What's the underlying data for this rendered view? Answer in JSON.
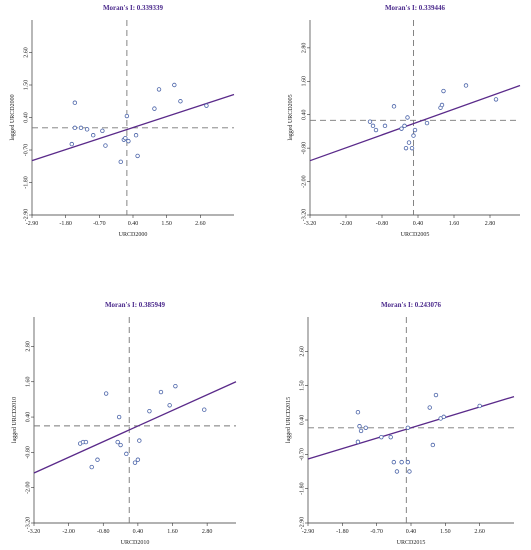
{
  "figure": {
    "chart_data": [
      {
        "type": "scatter",
        "title": "Moran's I: 0.339339",
        "xlabel": "URCD2000",
        "ylabel": "lagged URCD2000",
        "xlim": [
          -2.9,
          3.7
        ],
        "ylim": [
          -2.9,
          3.7
        ],
        "xticks": [
          "-2.90",
          "-1.80",
          "-0.70",
          "0.40",
          "1.50",
          "2.60"
        ],
        "yticks": [
          "-2.90",
          "-1.80",
          "-0.70",
          "0.40",
          "1.50",
          "2.60"
        ],
        "mean_x": 0.2,
        "mean_y": 0.05,
        "points": [
          {
            "x": -1.5,
            "y": 0.05
          },
          {
            "x": -1.3,
            "y": 0.05
          },
          {
            "x": -1.1,
            "y": 0.0
          },
          {
            "x": -0.9,
            "y": -0.2
          },
          {
            "x": -0.6,
            "y": -0.05
          },
          {
            "x": -0.5,
            "y": -0.55
          },
          {
            "x": -1.6,
            "y": -0.5
          },
          {
            "x": -1.5,
            "y": 0.9
          },
          {
            "x": 0.1,
            "y": -0.35
          },
          {
            "x": 0.15,
            "y": -0.3
          },
          {
            "x": 0.2,
            "y": 0.45
          },
          {
            "x": 0.25,
            "y": -0.4
          },
          {
            "x": 0.5,
            "y": -0.2
          },
          {
            "x": 0.55,
            "y": -0.9
          },
          {
            "x": 0.0,
            "y": -1.1
          },
          {
            "x": 1.1,
            "y": 0.7
          },
          {
            "x": 1.25,
            "y": 1.35
          },
          {
            "x": 1.75,
            "y": 1.5
          },
          {
            "x": 1.95,
            "y": 0.95
          },
          {
            "x": 2.8,
            "y": 0.8
          }
        ],
        "fit": {
          "x": [
            -2.9,
            3.7
          ],
          "y": [
            -1.06,
            1.18
          ]
        }
      },
      {
        "type": "scatter",
        "title": "Moran's I: 0.339446",
        "xlabel": "URCD2005",
        "ylabel": "lagged URCD2005",
        "xlim": [
          -3.2,
          3.8
        ],
        "ylim": [
          -3.2,
          3.8
        ],
        "xticks": [
          "-3.20",
          "-2.00",
          "-0.80",
          "0.40",
          "1.60",
          "2.80"
        ],
        "yticks": [
          "-3.20",
          "-2.00",
          "-0.80",
          "0.40",
          "1.60",
          "2.80"
        ],
        "mean_x": 0.25,
        "mean_y": 0.2,
        "points": [
          {
            "x": -1.2,
            "y": 0.15
          },
          {
            "x": -1.1,
            "y": 0.0
          },
          {
            "x": -1.0,
            "y": -0.15
          },
          {
            "x": -0.7,
            "y": 0.0
          },
          {
            "x": -0.4,
            "y": 0.7
          },
          {
            "x": -0.15,
            "y": -0.1
          },
          {
            "x": -0.05,
            "y": 0.0
          },
          {
            "x": 0.0,
            "y": -0.8
          },
          {
            "x": 0.1,
            "y": -0.6
          },
          {
            "x": 0.2,
            "y": -0.8
          },
          {
            "x": 0.25,
            "y": -0.35
          },
          {
            "x": 0.3,
            "y": -0.15
          },
          {
            "x": 0.05,
            "y": 0.3
          },
          {
            "x": 0.7,
            "y": 0.1
          },
          {
            "x": 1.15,
            "y": 0.65
          },
          {
            "x": 1.2,
            "y": 0.75
          },
          {
            "x": 1.25,
            "y": 1.25
          },
          {
            "x": 2.0,
            "y": 1.45
          },
          {
            "x": 3.0,
            "y": 0.95
          }
        ],
        "fit": {
          "x": [
            -3.2,
            3.8
          ],
          "y": [
            -1.25,
            1.45
          ]
        }
      },
      {
        "type": "scatter",
        "title": "Moran's I: 0.385949",
        "xlabel": "URCD2010",
        "ylabel": "lagged URCD2010",
        "xlim": [
          -3.2,
          3.8
        ],
        "ylim": [
          -3.2,
          3.8
        ],
        "xticks": [
          "-3.20",
          "-2.00",
          "-0.80",
          "0.40",
          "1.60",
          "2.80"
        ],
        "yticks": [
          "-3.20",
          "-2.00",
          "-0.80",
          "0.40",
          "1.60",
          "2.80"
        ],
        "mean_x": 0.1,
        "mean_y": 0.1,
        "points": [
          {
            "x": -1.6,
            "y": -0.5
          },
          {
            "x": -1.5,
            "y": -0.45
          },
          {
            "x": -1.4,
            "y": -0.45
          },
          {
            "x": -1.2,
            "y": -1.3
          },
          {
            "x": -1.0,
            "y": -1.05
          },
          {
            "x": -0.7,
            "y": 1.2
          },
          {
            "x": -0.3,
            "y": -0.45
          },
          {
            "x": -0.2,
            "y": -0.55
          },
          {
            "x": -0.25,
            "y": 0.4
          },
          {
            "x": 0.0,
            "y": -0.85
          },
          {
            "x": 0.3,
            "y": -1.15
          },
          {
            "x": 0.4,
            "y": -1.05
          },
          {
            "x": 0.45,
            "y": -0.4
          },
          {
            "x": 0.8,
            "y": 0.6
          },
          {
            "x": 1.2,
            "y": 1.25
          },
          {
            "x": 1.5,
            "y": 0.8
          },
          {
            "x": 1.7,
            "y": 1.45
          },
          {
            "x": 2.7,
            "y": 0.65
          }
        ],
        "fit": {
          "x": [
            -3.2,
            3.8
          ],
          "y": [
            -1.5,
            1.6
          ]
        }
      },
      {
        "type": "scatter",
        "title": "Moran's I: 0.243076",
        "xlabel": "URCD2015",
        "ylabel": "lagged URCD2015",
        "xlim": [
          -2.9,
          3.7
        ],
        "ylim": [
          -2.9,
          3.7
        ],
        "xticks": [
          "-2.90",
          "-1.80",
          "-0.70",
          "0.40",
          "1.50",
          "2.60"
        ],
        "yticks": [
          "-2.90",
          "-1.80",
          "-0.70",
          "0.40",
          "1.50",
          "2.60"
        ],
        "mean_x": 0.25,
        "mean_y": 0.15,
        "points": [
          {
            "x": -1.3,
            "y": 0.65
          },
          {
            "x": -1.25,
            "y": 0.2
          },
          {
            "x": -1.2,
            "y": 0.05
          },
          {
            "x": -1.3,
            "y": -0.3
          },
          {
            "x": -1.05,
            "y": 0.15
          },
          {
            "x": -0.55,
            "y": -0.15
          },
          {
            "x": -0.25,
            "y": -0.15
          },
          {
            "x": -0.15,
            "y": -0.95
          },
          {
            "x": -0.05,
            "y": -1.25
          },
          {
            "x": 0.1,
            "y": -0.95
          },
          {
            "x": 0.3,
            "y": -0.95
          },
          {
            "x": 0.35,
            "y": -1.25
          },
          {
            "x": 0.3,
            "y": 0.15
          },
          {
            "x": 1.0,
            "y": 0.8
          },
          {
            "x": 1.1,
            "y": -0.4
          },
          {
            "x": 1.2,
            "y": 1.2
          },
          {
            "x": 1.35,
            "y": 0.45
          },
          {
            "x": 1.45,
            "y": 0.5
          },
          {
            "x": 2.6,
            "y": 0.85
          }
        ],
        "fit": {
          "x": [
            -2.9,
            3.7
          ],
          "y": [
            -0.85,
            1.15
          ]
        }
      }
    ]
  },
  "colors": {
    "fit_line": "#5a2a8a",
    "point_stroke": "#4a63a8",
    "reference_line": "#777777",
    "axis": "#333333",
    "title": "#4b2a8c"
  }
}
